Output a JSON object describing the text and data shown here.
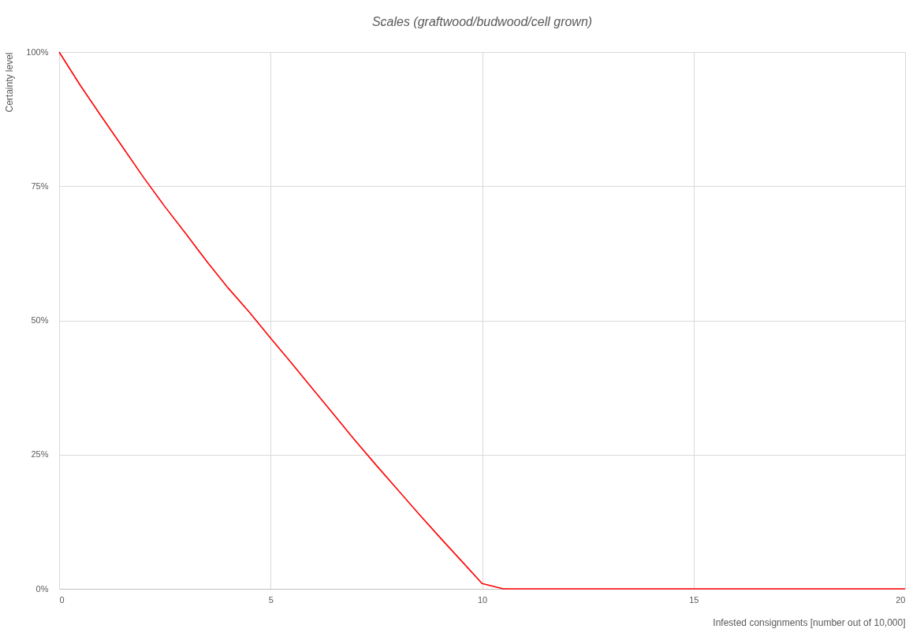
{
  "chart_data": {
    "type": "line",
    "title": "Scales (graftwood/budwood/cell grown)",
    "xlabel": "Infested consignments [number out of 10,000]",
    "ylabel": "Certainty level",
    "x": [
      0,
      0.5,
      1,
      1.5,
      2,
      2.5,
      3,
      3.5,
      4,
      4.5,
      5,
      5.5,
      6,
      6.5,
      7,
      7.5,
      8,
      8.5,
      9,
      9.5,
      10,
      10.5,
      11,
      12,
      13,
      14,
      15,
      16,
      17,
      18,
      19,
      20
    ],
    "series": [
      {
        "color": "#ff0000",
        "values": [
          100,
          93.8,
          88,
          82.3,
          76.6,
          71.2,
          66.1,
          60.9,
          56.0,
          51.5,
          46.7,
          42.0,
          37.2,
          32.4,
          27.6,
          23.0,
          18.5,
          14.0,
          9.6,
          5.3,
          1.0,
          0,
          0,
          0,
          0,
          0,
          0,
          0,
          0,
          0,
          0,
          0
        ]
      }
    ],
    "xlim": [
      0,
      20
    ],
    "xticks": [
      0,
      5,
      10,
      15,
      20
    ],
    "ylim": [
      0,
      100
    ],
    "yticks": [
      {
        "value": 0,
        "label": "0%"
      },
      {
        "value": 25,
        "label": "25%"
      },
      {
        "value": 50,
        "label": "50%"
      },
      {
        "value": 75,
        "label": "75%"
      },
      {
        "value": 100,
        "label": "100%"
      }
    ],
    "grid": true,
    "legend": false,
    "marker": "none",
    "line_style": "solid"
  }
}
